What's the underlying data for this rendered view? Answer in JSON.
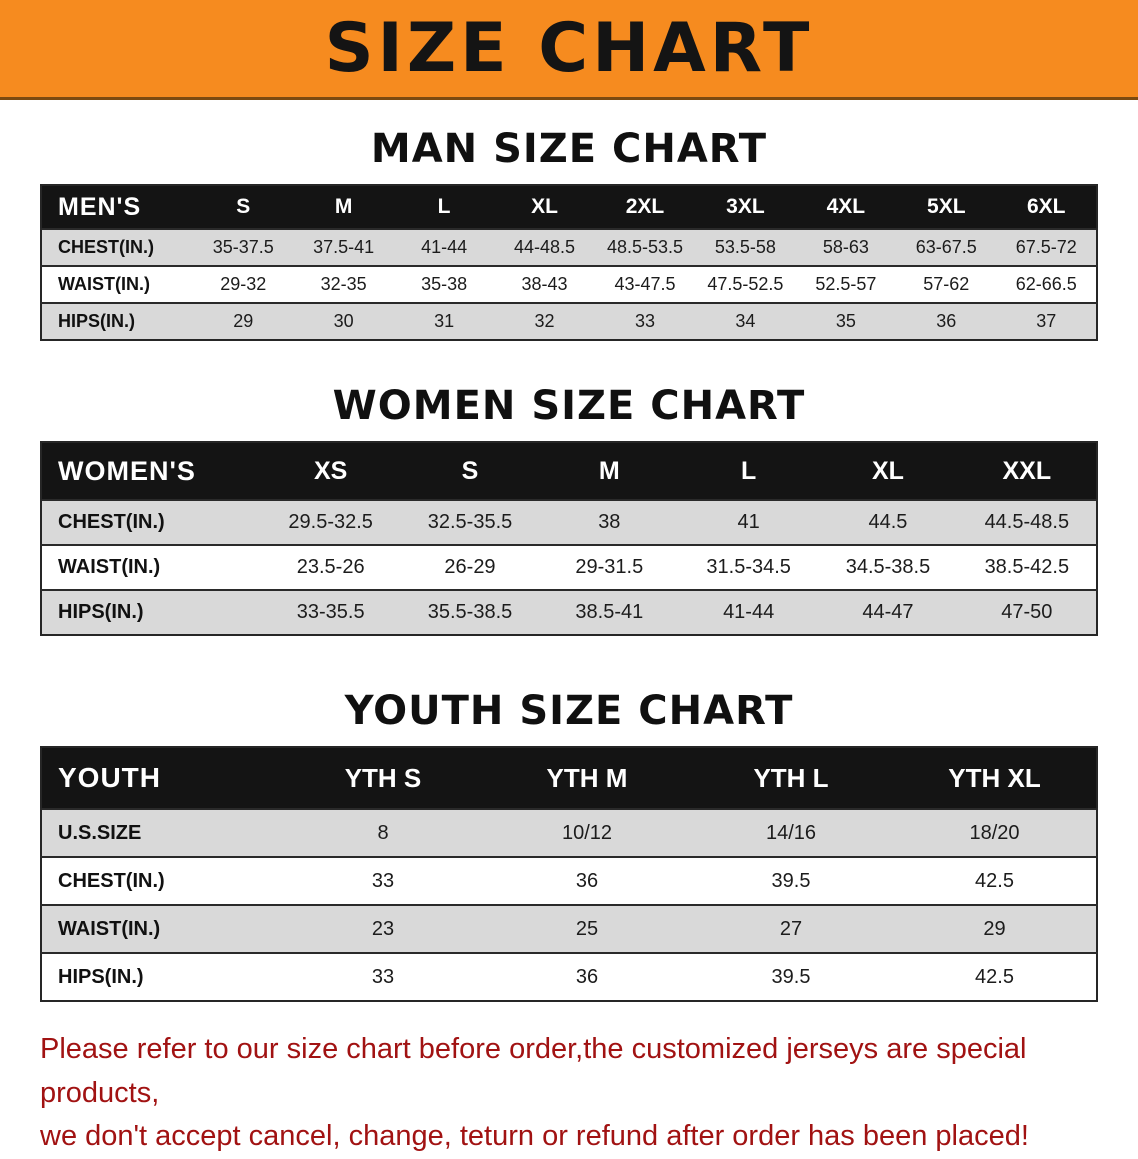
{
  "banner": {
    "title": "SIZE CHART"
  },
  "colors": {
    "banner_bg": "#f68b1f",
    "table_header_bg": "#141414",
    "row_alt_bg": "#d9d9d9",
    "disclaimer_text": "#a11212"
  },
  "chart_data": [
    {
      "type": "table",
      "title": "MAN SIZE CHART",
      "header_label": "MEN'S",
      "columns": [
        "S",
        "M",
        "L",
        "XL",
        "2XL",
        "3XL",
        "4XL",
        "5XL",
        "6XL"
      ],
      "rows": [
        {
          "label": "CHEST(IN.)",
          "values": [
            "35-37.5",
            "37.5-41",
            "41-44",
            "44-48.5",
            "48.5-53.5",
            "53.5-58",
            "58-63",
            "63-67.5",
            "67.5-72"
          ]
        },
        {
          "label": "WAIST(IN.)",
          "values": [
            "29-32",
            "32-35",
            "35-38",
            "38-43",
            "43-47.5",
            "47.5-52.5",
            "52.5-57",
            "57-62",
            "62-66.5"
          ]
        },
        {
          "label": "HIPS(IN.)",
          "values": [
            "29",
            "30",
            "31",
            "32",
            "33",
            "34",
            "35",
            "36",
            "37"
          ]
        }
      ]
    },
    {
      "type": "table",
      "title": "WOMEN SIZE CHART",
      "header_label": "WOMEN'S",
      "columns": [
        "XS",
        "S",
        "M",
        "L",
        "XL",
        "XXL"
      ],
      "rows": [
        {
          "label": "CHEST(IN.)",
          "values": [
            "29.5-32.5",
            "32.5-35.5",
            "38",
            "41",
            "44.5",
            "44.5-48.5"
          ]
        },
        {
          "label": "WAIST(IN.)",
          "values": [
            "23.5-26",
            "26-29",
            "29-31.5",
            "31.5-34.5",
            "34.5-38.5",
            "38.5-42.5"
          ]
        },
        {
          "label": "HIPS(IN.)",
          "values": [
            "33-35.5",
            "35.5-38.5",
            "38.5-41",
            "41-44",
            "44-47",
            "47-50"
          ]
        }
      ]
    },
    {
      "type": "table",
      "title": "YOUTH SIZE CHART",
      "header_label": "YOUTH",
      "columns": [
        "YTH S",
        "YTH M",
        "YTH L",
        "YTH XL"
      ],
      "rows": [
        {
          "label": "U.S.SIZE",
          "values": [
            "8",
            "10/12",
            "14/16",
            "18/20"
          ]
        },
        {
          "label": "CHEST(IN.)",
          "values": [
            "33",
            "36",
            "39.5",
            "42.5"
          ]
        },
        {
          "label": "WAIST(IN.)",
          "values": [
            "23",
            "25",
            "27",
            "29"
          ]
        },
        {
          "label": "HIPS(IN.)",
          "values": [
            "33",
            "36",
            "39.5",
            "42.5"
          ]
        }
      ]
    }
  ],
  "disclaimer": {
    "line1": "Please refer to our size chart before order,the customized jerseys are special products,",
    "line2": "we don't accept cancel, change, teturn or refund after order has been placed!"
  }
}
